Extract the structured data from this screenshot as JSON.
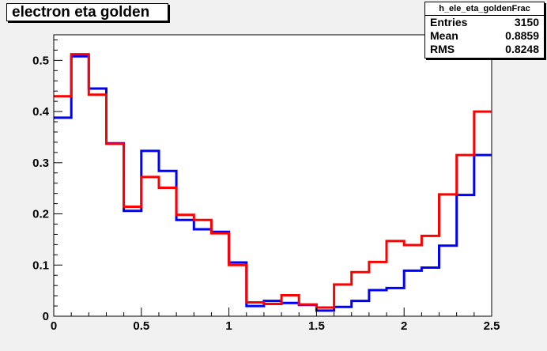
{
  "chart_data": {
    "type": "line",
    "title": "electron eta golden",
    "xlim": [
      0,
      2.5
    ],
    "ylim": [
      0,
      0.55
    ],
    "xticks": [
      "0",
      "0.5",
      "1",
      "1.5",
      "2",
      "2.5"
    ],
    "yticks": [
      "0",
      "0.1",
      "0.2",
      "0.3",
      "0.4",
      "0.5"
    ],
    "grid": false,
    "bin_edges": [
      0,
      0.1,
      0.2,
      0.3,
      0.4,
      0.5,
      0.6,
      0.7,
      0.8,
      0.9,
      1.0,
      1.1,
      1.2,
      1.3,
      1.4,
      1.5,
      1.6,
      1.7,
      1.8,
      1.9,
      2.0,
      2.1,
      2.2,
      2.3,
      2.4,
      2.5
    ],
    "series": [
      {
        "color": "#0000ff",
        "values": [
          0.388,
          0.508,
          0.445,
          0.338,
          0.206,
          0.323,
          0.284,
          0.188,
          0.17,
          0.165,
          0.105,
          0.02,
          0.03,
          0.026,
          0.022,
          0.011,
          0.018,
          0.03,
          0.051,
          0.055,
          0.089,
          0.095,
          0.138,
          0.237,
          0.315
        ]
      },
      {
        "color": "#ff0000",
        "values": [
          0.43,
          0.512,
          0.433,
          0.337,
          0.214,
          0.272,
          0.251,
          0.198,
          0.188,
          0.162,
          0.1,
          0.027,
          0.024,
          0.041,
          0.023,
          0.017,
          0.062,
          0.086,
          0.106,
          0.147,
          0.139,
          0.157,
          0.238,
          0.315,
          0.4
        ]
      }
    ]
  },
  "stats": {
    "name": "h_ele_eta_goldenFrac",
    "rows": [
      {
        "label": "Entries",
        "value": "3150"
      },
      {
        "label": "Mean",
        "value": "0.8859"
      },
      {
        "label": "RMS",
        "value": "0.8248"
      }
    ]
  }
}
